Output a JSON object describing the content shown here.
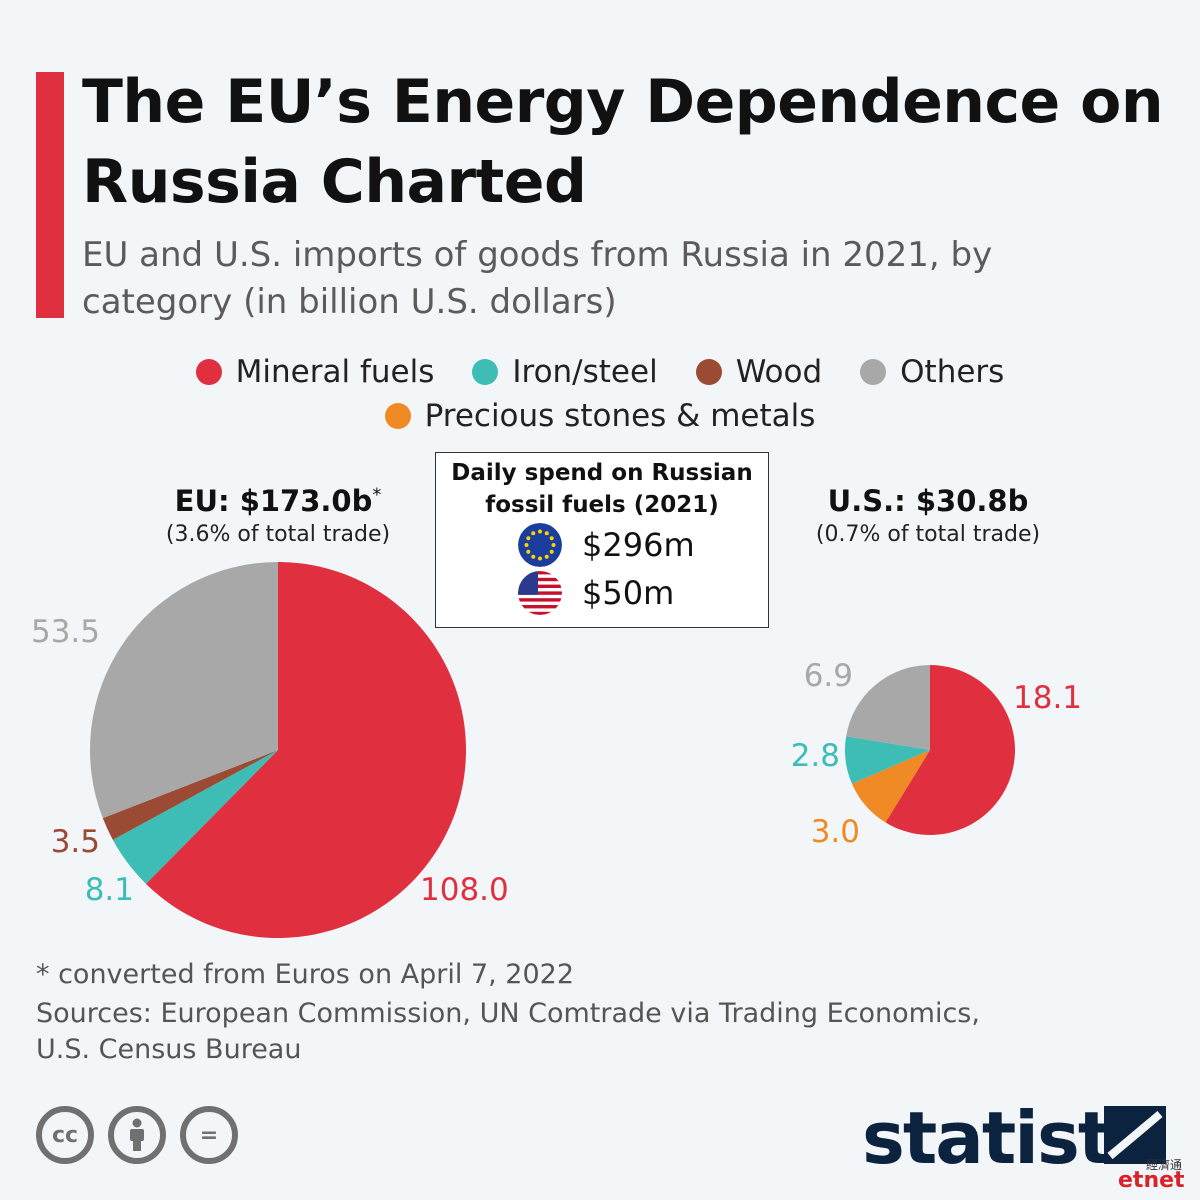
{
  "header": {
    "title": "The EU’s Energy Dependence on Russia Charted",
    "subtitle": "EU and U.S. imports of goods from Russia in 2021, by category (in billion U.S. dollars)"
  },
  "colors": {
    "accent": "#e0303f",
    "mineral_fuels": "#e0303f",
    "iron_steel": "#3dbdb6",
    "wood": "#9b4a33",
    "others": "#a8a8a8",
    "precious": "#f08a24"
  },
  "legend": [
    {
      "label": "Mineral fuels",
      "color": "#e0303f"
    },
    {
      "label": "Iron/steel",
      "color": "#3dbdb6"
    },
    {
      "label": "Wood",
      "color": "#9b4a33"
    },
    {
      "label": "Others",
      "color": "#a8a8a8"
    },
    {
      "label": "Precious stones & metals",
      "color": "#f08a24"
    }
  ],
  "info_box": {
    "title": "Daily spend on Russian fossil fuels (2021)",
    "eu_value": "$296m",
    "us_value": "$50m",
    "eu_icon": "eu-flag-icon",
    "us_icon": "us-flag-icon"
  },
  "chart_data": [
    {
      "type": "pie",
      "title": "EU: $173.0b",
      "title_marker": "*",
      "subtitle": "(3.6% of total trade)",
      "slices": [
        {
          "name": "Mineral fuels",
          "value": 108.0,
          "label": "108.0",
          "color": "#e0303f"
        },
        {
          "name": "Iron/steel",
          "value": 8.1,
          "label": "8.1",
          "color": "#3dbdb6"
        },
        {
          "name": "Wood",
          "value": 3.5,
          "label": "3.5",
          "color": "#9b4a33"
        },
        {
          "name": "Others",
          "value": 53.5,
          "label": "53.5",
          "color": "#a8a8a8"
        }
      ]
    },
    {
      "type": "pie",
      "title": "U.S.: $30.8b",
      "subtitle": "(0.7% of total trade)",
      "slices": [
        {
          "name": "Mineral fuels",
          "value": 18.1,
          "label": "18.1",
          "color": "#e0303f"
        },
        {
          "name": "Precious stones & metals",
          "value": 3.0,
          "label": "3.0",
          "color": "#f08a24"
        },
        {
          "name": "Iron/steel",
          "value": 2.8,
          "label": "2.8",
          "color": "#3dbdb6"
        },
        {
          "name": "Others",
          "value": 6.9,
          "label": "6.9",
          "color": "#a8a8a8"
        }
      ]
    }
  ],
  "footer": {
    "footnote": "* converted from Euros on April 7, 2022",
    "sources": "Sources: European Commission, UN Comtrade via Trading Economics, U.S. Census Bureau",
    "license_icons": [
      "cc-icon",
      "attribution-icon",
      "no-derivatives-icon"
    ],
    "license_cc": "cc",
    "license_nd": "=",
    "brand": "statista",
    "watermark": "etnet",
    "watermark_cn": "經濟通"
  }
}
